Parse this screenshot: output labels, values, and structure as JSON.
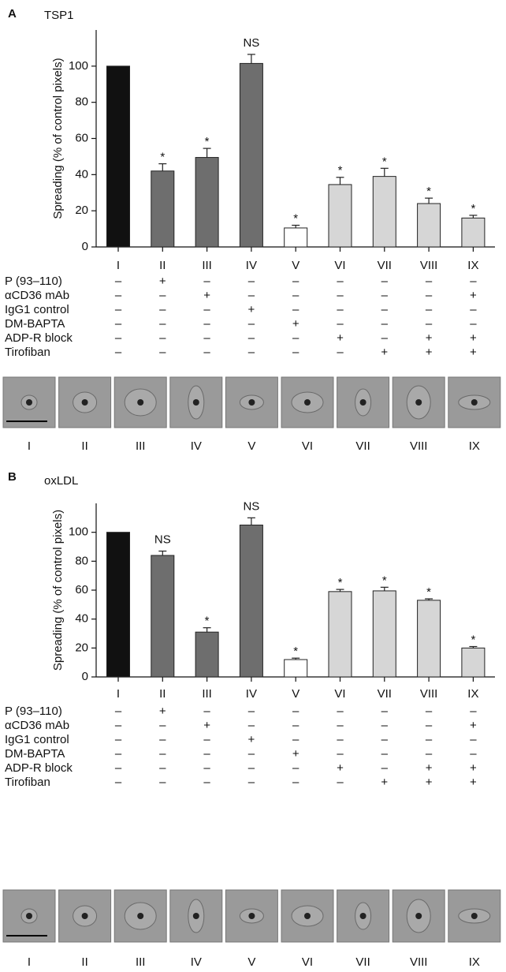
{
  "chart_data": [
    {
      "type": "bar",
      "panel": "A",
      "title": "TSP1",
      "y_label": "Spreading (% of control pixels)",
      "categories": [
        "I",
        "II",
        "III",
        "IV",
        "V",
        "VI",
        "VII",
        "VIII",
        "IX"
      ],
      "values": [
        100,
        42,
        49.5,
        101.5,
        10.5,
        34.5,
        39,
        24,
        16
      ],
      "errors": [
        0,
        4,
        5,
        5,
        1.5,
        4,
        4.5,
        3,
        1.5
      ],
      "annotations": [
        null,
        "*",
        "*",
        "NS",
        "*",
        "*",
        "*",
        "*",
        "*"
      ],
      "colors": [
        "#111111",
        "#6e6e6e",
        "#6e6e6e",
        "#6e6e6e",
        "#ffffff",
        "#d6d6d6",
        "#d6d6d6",
        "#d6d6d6",
        "#d6d6d6"
      ],
      "ylim": [
        0,
        120
      ],
      "yticks": [
        0,
        20,
        40,
        60,
        80,
        100
      ],
      "treatments": [
        {
          "label": "P (93–110)",
          "marks": [
            "–",
            "+",
            "–",
            "–",
            "–",
            "–",
            "–",
            "–",
            "–"
          ]
        },
        {
          "label": "αCD36 mAb",
          "marks": [
            "–",
            "–",
            "+",
            "–",
            "–",
            "–",
            "–",
            "–",
            "+"
          ]
        },
        {
          "label": "IgG1 control",
          "marks": [
            "–",
            "–",
            "–",
            "+",
            "–",
            "–",
            "–",
            "–",
            "–"
          ]
        },
        {
          "label": "DM-BAPTA",
          "marks": [
            "–",
            "–",
            "–",
            "–",
            "+",
            "–",
            "–",
            "–",
            "–"
          ]
        },
        {
          "label": "ADP-R block",
          "marks": [
            "–",
            "–",
            "–",
            "–",
            "–",
            "+",
            "–",
            "+",
            "+"
          ]
        },
        {
          "label": "Tirofiban",
          "marks": [
            "–",
            "–",
            "–",
            "–",
            "–",
            "–",
            "+",
            "+",
            "+"
          ]
        }
      ],
      "image_labels": [
        "I",
        "II",
        "III",
        "IV",
        "V",
        "VI",
        "VII",
        "VIII",
        "IX"
      ]
    },
    {
      "type": "bar",
      "panel": "B",
      "title": "oxLDL",
      "y_label": "Spreading (% of control pixels)",
      "categories": [
        "I",
        "II",
        "III",
        "IV",
        "V",
        "VI",
        "VII",
        "VIII",
        "IX"
      ],
      "values": [
        100,
        84,
        31,
        105,
        12,
        59,
        59.5,
        53,
        20
      ],
      "errors": [
        0,
        3,
        3,
        5,
        1,
        1.5,
        2.5,
        1,
        1
      ],
      "annotations": [
        null,
        "NS",
        "*",
        "NS",
        "*",
        "*",
        "*",
        "*",
        "*"
      ],
      "colors": [
        "#111111",
        "#6e6e6e",
        "#6e6e6e",
        "#6e6e6e",
        "#ffffff",
        "#d6d6d6",
        "#d6d6d6",
        "#d6d6d6",
        "#d6d6d6"
      ],
      "ylim": [
        0,
        120
      ],
      "yticks": [
        0,
        20,
        40,
        60,
        80,
        100
      ],
      "treatments": [
        {
          "label": "P (93–110)",
          "marks": [
            "–",
            "+",
            "–",
            "–",
            "–",
            "–",
            "–",
            "–",
            "–"
          ]
        },
        {
          "label": "αCD36 mAb",
          "marks": [
            "–",
            "–",
            "+",
            "–",
            "–",
            "–",
            "–",
            "–",
            "+"
          ]
        },
        {
          "label": "IgG1 control",
          "marks": [
            "–",
            "–",
            "–",
            "+",
            "–",
            "–",
            "–",
            "–",
            "–"
          ]
        },
        {
          "label": "DM-BAPTA",
          "marks": [
            "–",
            "–",
            "–",
            "–",
            "+",
            "–",
            "–",
            "–",
            "–"
          ]
        },
        {
          "label": "ADP-R block",
          "marks": [
            "–",
            "–",
            "–",
            "–",
            "–",
            "+",
            "–",
            "+",
            "+"
          ]
        },
        {
          "label": "Tirofiban",
          "marks": [
            "–",
            "–",
            "–",
            "–",
            "–",
            "–",
            "+",
            "+",
            "+"
          ]
        }
      ],
      "image_labels": [
        "I",
        "II",
        "III",
        "IV",
        "V",
        "VI",
        "VII",
        "VIII",
        "IX"
      ]
    }
  ]
}
